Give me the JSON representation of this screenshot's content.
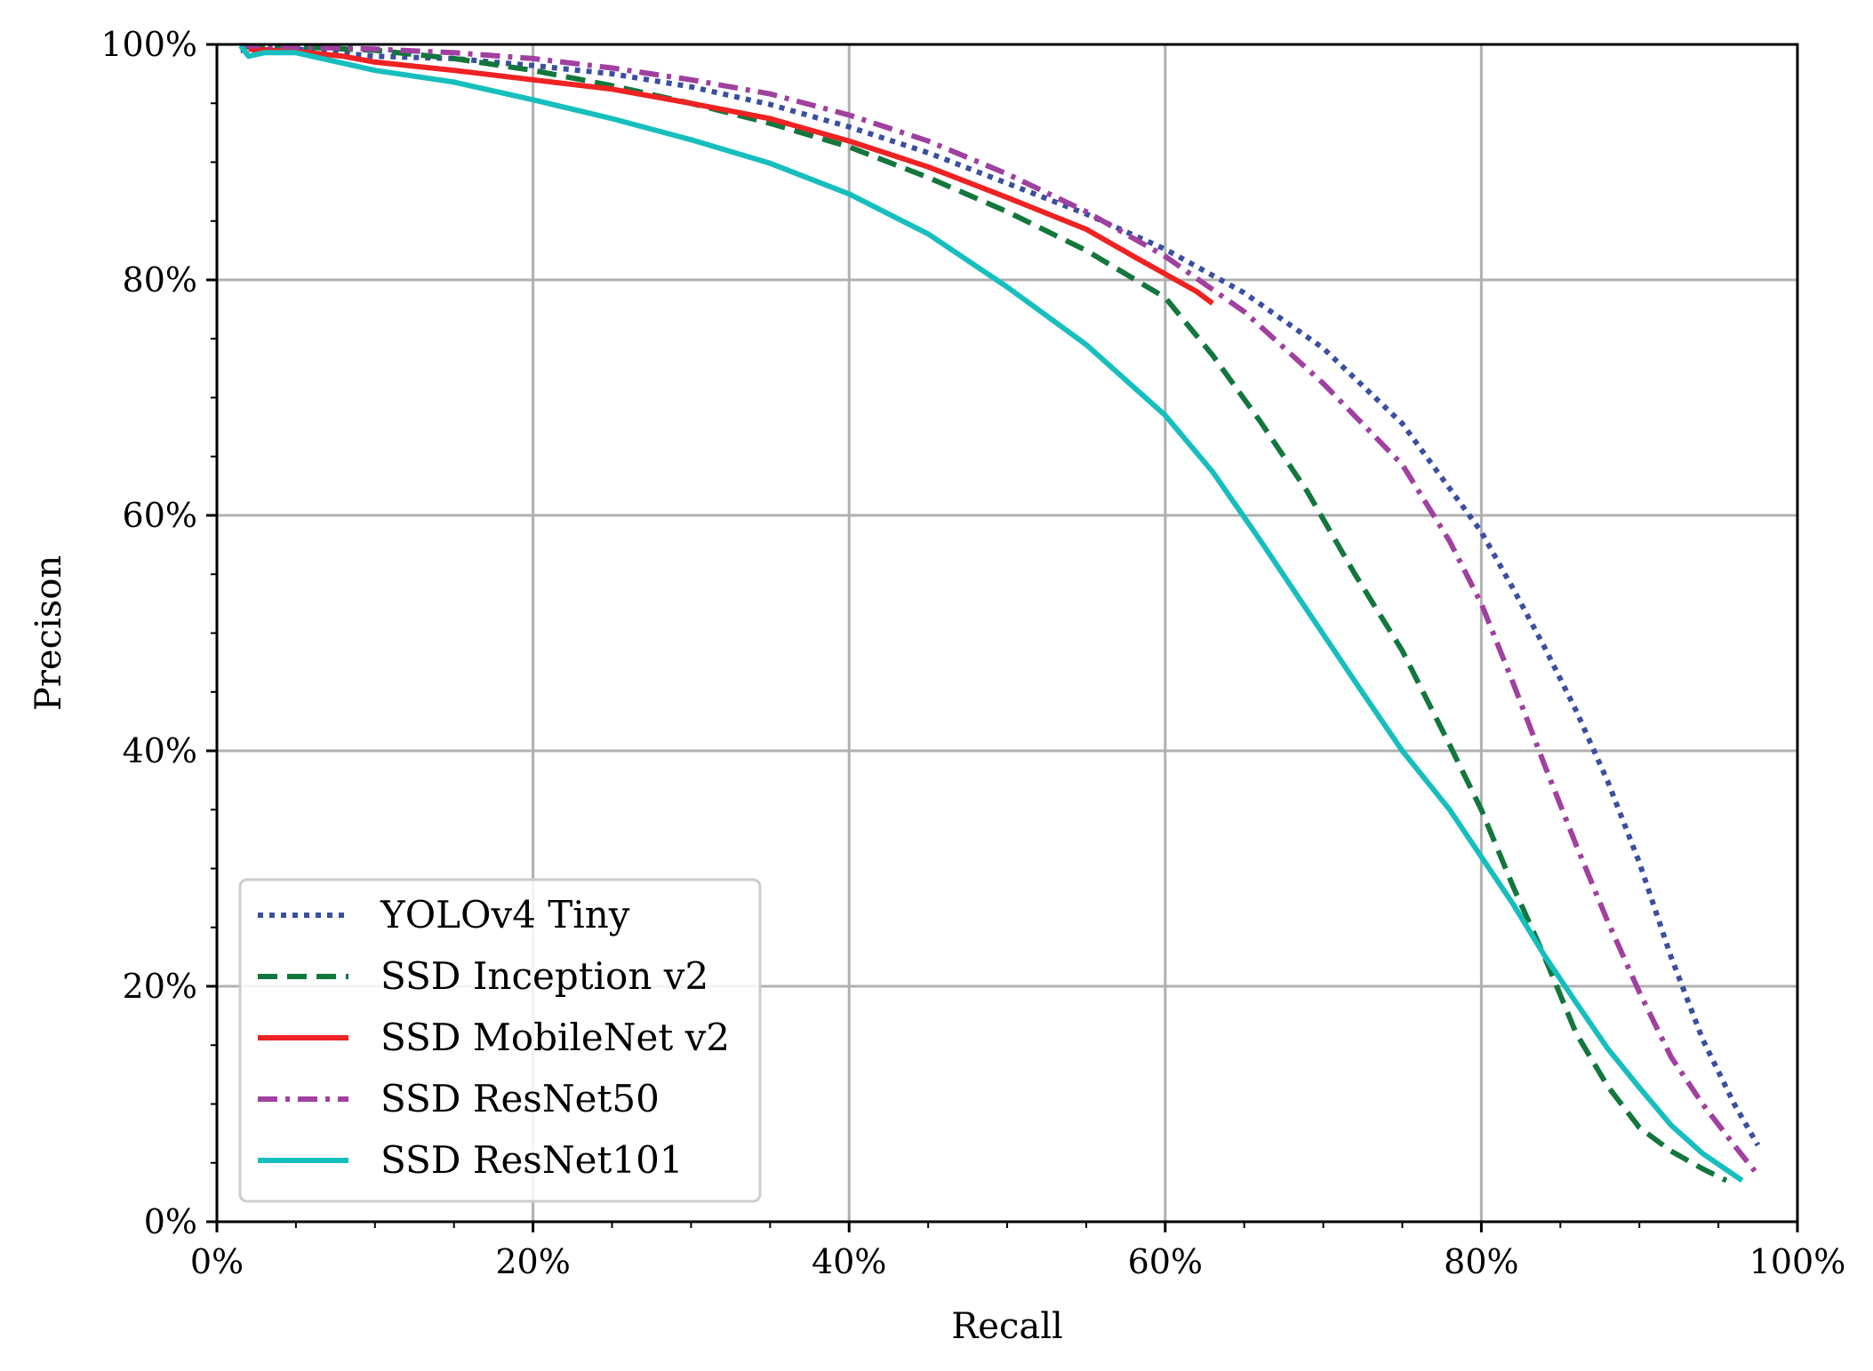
{
  "chart_data": {
    "type": "line",
    "title": "",
    "xlabel": "Recall",
    "ylabel": "Precison",
    "xlim": [
      0,
      100
    ],
    "ylim": [
      0,
      100
    ],
    "x_ticks": [
      0,
      20,
      40,
      60,
      80,
      100
    ],
    "y_ticks": [
      0,
      20,
      40,
      60,
      80,
      100
    ],
    "x_tick_labels": [
      "0%",
      "20%",
      "40%",
      "60%",
      "80%",
      "100%"
    ],
    "y_tick_labels": [
      "0%",
      "20%",
      "40%",
      "60%",
      "80%",
      "100%"
    ],
    "grid": true,
    "legend_position": "lower-left",
    "series": [
      {
        "name": "YOLOv4 Tiny",
        "color": "#3b4fa0",
        "style": "dotted",
        "points": [
          [
            1.5,
            99.5
          ],
          [
            5,
            99.6
          ],
          [
            10,
            99.0
          ],
          [
            15,
            98.8
          ],
          [
            20,
            98.2
          ],
          [
            25,
            97.5
          ],
          [
            30,
            96.4
          ],
          [
            35,
            94.9
          ],
          [
            40,
            93.0
          ],
          [
            45,
            90.8
          ],
          [
            50,
            88.2
          ],
          [
            55,
            85.6
          ],
          [
            60,
            82.6
          ],
          [
            65,
            78.9
          ],
          [
            70,
            74.2
          ],
          [
            75,
            67.8
          ],
          [
            80,
            58.6
          ],
          [
            82,
            53.8
          ],
          [
            84,
            48.8
          ],
          [
            86,
            43.4
          ],
          [
            88,
            37.4
          ],
          [
            90,
            30.5
          ],
          [
            92,
            22.5
          ],
          [
            94,
            15.5
          ],
          [
            96,
            10.0
          ],
          [
            97.5,
            6.5
          ]
        ]
      },
      {
        "name": "SSD Inception v2",
        "color": "#13773d",
        "style": "dashed",
        "points": [
          [
            1.8,
            99.8
          ],
          [
            5,
            99.8
          ],
          [
            10,
            99.5
          ],
          [
            15,
            98.8
          ],
          [
            20,
            97.8
          ],
          [
            25,
            96.5
          ],
          [
            30,
            95.0
          ],
          [
            35,
            93.3
          ],
          [
            40,
            91.3
          ],
          [
            45,
            88.7
          ],
          [
            50,
            85.8
          ],
          [
            55,
            82.5
          ],
          [
            60,
            78.5
          ],
          [
            63,
            73.6
          ],
          [
            66,
            68.0
          ],
          [
            69,
            62.0
          ],
          [
            72,
            55.0
          ],
          [
            75,
            48.5
          ],
          [
            78,
            40.5
          ],
          [
            80,
            35.0
          ],
          [
            82,
            28.5
          ],
          [
            84,
            22.5
          ],
          [
            86,
            16.0
          ],
          [
            88,
            11.5
          ],
          [
            90,
            8.0
          ],
          [
            92,
            6.0
          ],
          [
            94,
            4.5
          ],
          [
            95.5,
            3.5
          ]
        ]
      },
      {
        "name": "SSD MobileNet v2",
        "color": "#ee2222",
        "style": "solid",
        "points": [
          [
            2,
            99.6
          ],
          [
            5,
            99.4
          ],
          [
            8,
            99.0
          ],
          [
            10,
            98.5
          ],
          [
            15,
            97.8
          ],
          [
            20,
            97.0
          ],
          [
            25,
            96.2
          ],
          [
            30,
            95.0
          ],
          [
            35,
            93.7
          ],
          [
            40,
            91.8
          ],
          [
            45,
            89.6
          ],
          [
            50,
            87.0
          ],
          [
            55,
            84.3
          ],
          [
            58,
            82.0
          ],
          [
            60,
            80.5
          ],
          [
            62,
            79.0
          ],
          [
            63,
            78.0
          ]
        ]
      },
      {
        "name": "SSD ResNet50",
        "color": "#a040a0",
        "style": "dashdot",
        "points": [
          [
            1.5,
            99.9
          ],
          [
            5,
            99.8
          ],
          [
            10,
            99.6
          ],
          [
            15,
            99.3
          ],
          [
            20,
            98.8
          ],
          [
            25,
            98.0
          ],
          [
            30,
            97.0
          ],
          [
            35,
            95.8
          ],
          [
            40,
            94.0
          ],
          [
            45,
            91.8
          ],
          [
            50,
            89.0
          ],
          [
            55,
            85.8
          ],
          [
            60,
            82.0
          ],
          [
            65,
            77.3
          ],
          [
            70,
            71.2
          ],
          [
            75,
            64.3
          ],
          [
            78,
            57.8
          ],
          [
            80,
            52.5
          ],
          [
            82,
            45.8
          ],
          [
            84,
            38.8
          ],
          [
            86,
            32.0
          ],
          [
            88,
            25.5
          ],
          [
            90,
            19.5
          ],
          [
            92,
            14.0
          ],
          [
            94,
            10.0
          ],
          [
            96,
            6.5
          ],
          [
            97.3,
            4.3
          ]
        ]
      },
      {
        "name": "SSD ResNet101",
        "color": "#17bebe",
        "style": "solid",
        "points": [
          [
            1.5,
            99.9
          ],
          [
            2,
            99.0
          ],
          [
            3,
            99.3
          ],
          [
            5,
            99.3
          ],
          [
            10,
            97.8
          ],
          [
            15,
            96.8
          ],
          [
            20,
            95.3
          ],
          [
            25,
            93.7
          ],
          [
            30,
            91.9
          ],
          [
            35,
            89.9
          ],
          [
            40,
            87.3
          ],
          [
            45,
            83.9
          ],
          [
            50,
            79.4
          ],
          [
            55,
            74.5
          ],
          [
            60,
            68.5
          ],
          [
            63,
            63.7
          ],
          [
            66,
            57.9
          ],
          [
            69,
            51.9
          ],
          [
            72,
            45.9
          ],
          [
            75,
            40.0
          ],
          [
            78,
            35.0
          ],
          [
            80,
            31.0
          ],
          [
            82,
            27.0
          ],
          [
            84,
            22.6
          ],
          [
            86,
            18.6
          ],
          [
            88,
            14.7
          ],
          [
            90,
            11.4
          ],
          [
            92,
            8.2
          ],
          [
            94,
            5.8
          ],
          [
            96.5,
            3.5
          ]
        ]
      }
    ]
  }
}
